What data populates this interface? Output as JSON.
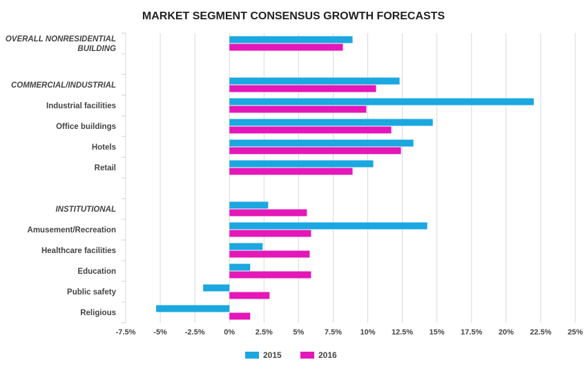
{
  "chart_data": {
    "type": "bar",
    "orientation": "horizontal",
    "title": "MARKET SEGMENT CONSENSUS GROWTH FORECASTS",
    "xlabel": "",
    "ylabel": "",
    "xlim": [
      -7.5,
      25
    ],
    "xticks": [
      -7.5,
      -5,
      -2.5,
      0,
      2.5,
      5,
      7.5,
      10,
      12.5,
      15,
      17.5,
      20,
      22.5,
      25
    ],
    "xtick_labels": [
      "-7.5%",
      "-5%",
      "-2.5%",
      "0%",
      "2.5%",
      "5%",
      "7.5%",
      "10%",
      "12.5%",
      "15%",
      "17.5%",
      "20%",
      "22.5%",
      "25%"
    ],
    "grid": true,
    "legend_position": "bottom-center",
    "categories": [
      {
        "label": "OVERALL NONRESIDENTIAL BUILDING",
        "lines": [
          "OVERALL NONRESIDENTIAL",
          "BUILDING"
        ],
        "group": true
      },
      {
        "label": "",
        "lines": [],
        "group": false
      },
      {
        "label": "COMMERCIAL/INDUSTRIAL",
        "lines": [
          "COMMERCIAL/INDUSTRIAL"
        ],
        "group": true
      },
      {
        "label": "Industrial facilities",
        "lines": [
          "Industrial facilities"
        ],
        "group": false
      },
      {
        "label": "Office buildings",
        "lines": [
          "Office buildings"
        ],
        "group": false
      },
      {
        "label": "Hotels",
        "lines": [
          "Hotels"
        ],
        "group": false
      },
      {
        "label": "Retail",
        "lines": [
          "Retail"
        ],
        "group": false
      },
      {
        "label": "",
        "lines": [],
        "group": false
      },
      {
        "label": "INSTITUTIONAL",
        "lines": [
          "INSTITUTIONAL"
        ],
        "group": true
      },
      {
        "label": "Amusement/Recreation",
        "lines": [
          "Amusement/Recreation"
        ],
        "group": false
      },
      {
        "label": "Healthcare facilities",
        "lines": [
          "Healthcare facilities"
        ],
        "group": false
      },
      {
        "label": "Education",
        "lines": [
          "Education"
        ],
        "group": false
      },
      {
        "label": "Public safety",
        "lines": [
          "Public safety"
        ],
        "group": false
      },
      {
        "label": "Religious",
        "lines": [
          "Religious"
        ],
        "group": false
      }
    ],
    "series": [
      {
        "name": "2015",
        "color": "#1ba7e0",
        "values": [
          8.9,
          null,
          12.3,
          22.0,
          14.7,
          13.3,
          10.4,
          null,
          2.8,
          14.3,
          2.4,
          1.5,
          -1.9,
          -5.3
        ]
      },
      {
        "name": "2016",
        "color": "#e417b8",
        "values": [
          8.2,
          null,
          10.6,
          9.9,
          11.7,
          12.4,
          8.9,
          null,
          5.6,
          5.9,
          5.8,
          5.9,
          2.9,
          1.5
        ]
      }
    ]
  }
}
